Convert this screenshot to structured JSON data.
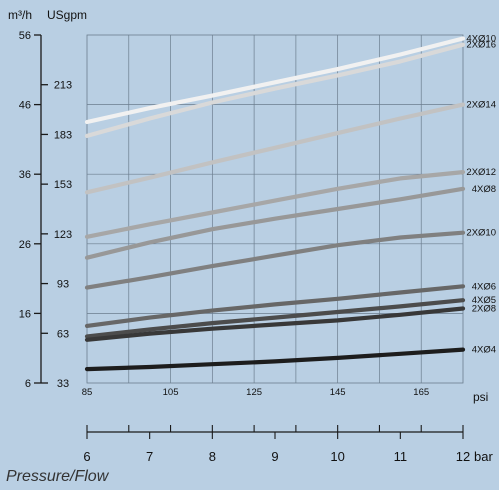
{
  "caption": "Pressure/Flow",
  "chart_data": {
    "type": "line",
    "units": {
      "left": "m³/h",
      "second": "USgpm",
      "top_x": "psi",
      "bottom_x": "bar"
    },
    "axes": {
      "m3h": {
        "range": [
          6,
          56
        ],
        "ticks": [
          6,
          16,
          26,
          36,
          46,
          56
        ]
      },
      "usgpm": {
        "range": [
          33,
          243
        ],
        "ticks": [
          33,
          63,
          93,
          123,
          153,
          183,
          213
        ]
      },
      "psi": {
        "range": [
          85,
          175
        ],
        "ticks": [
          85,
          105,
          125,
          145,
          165
        ],
        "minor_step": 10
      },
      "bar": {
        "range": [
          6,
          12
        ],
        "ticks": [
          6,
          7,
          8,
          9,
          10,
          11,
          12
        ]
      }
    },
    "grid": true,
    "series": [
      {
        "name": "4XØ10",
        "color": "#f1f1f1",
        "x": [
          6,
          7,
          8,
          9,
          10,
          11,
          12
        ],
        "values": [
          43.5,
          45.5,
          47.3,
          49.2,
          51.1,
          53.2,
          55.5
        ]
      },
      {
        "name": "2XØ16",
        "color": "#d9d9d9",
        "x": [
          6,
          7,
          8,
          9,
          10,
          11,
          12
        ],
        "values": [
          41.5,
          44.0,
          46.3,
          48.3,
          50.2,
          52.2,
          54.6
        ]
      },
      {
        "name": "2XØ14",
        "color": "#c2c2c2",
        "x": [
          6,
          7,
          8,
          9,
          10,
          11,
          12
        ],
        "values": [
          33.4,
          35.5,
          37.7,
          39.8,
          41.9,
          44.0,
          46.0
        ]
      },
      {
        "name": "2XØ12",
        "color": "#a7a7a7",
        "x": [
          6,
          7,
          8,
          9,
          10,
          11,
          12
        ],
        "values": [
          27.0,
          28.8,
          30.5,
          32.2,
          33.9,
          35.4,
          36.3
        ]
      },
      {
        "name": "4XØ8",
        "color": "#989898",
        "x": [
          6,
          7,
          8,
          9,
          10,
          11,
          12
        ],
        "values": [
          24.0,
          26.2,
          28.1,
          29.6,
          31.0,
          32.4,
          33.9
        ]
      },
      {
        "name": "2XØ10",
        "color": "#808080",
        "x": [
          6,
          7,
          8,
          9,
          10,
          11,
          12
        ],
        "values": [
          19.7,
          21.2,
          22.8,
          24.3,
          25.8,
          26.9,
          27.6
        ]
      },
      {
        "name": "4XØ6",
        "color": "#676767",
        "x": [
          6,
          7,
          8,
          9,
          10,
          11,
          12
        ],
        "values": [
          14.2,
          15.4,
          16.4,
          17.3,
          18.1,
          19.0,
          19.9
        ]
      },
      {
        "name": "4XØ5",
        "color": "#4c4c4c",
        "x": [
          6,
          7,
          8,
          9,
          10,
          11,
          12
        ],
        "values": [
          12.7,
          13.7,
          14.6,
          15.4,
          16.2,
          17.0,
          17.9
        ]
      },
      {
        "name": "2XØ8",
        "color": "#383838",
        "x": [
          6,
          7,
          8,
          9,
          10,
          11,
          12
        ],
        "values": [
          12.2,
          13.1,
          13.8,
          14.4,
          15.0,
          15.8,
          16.7
        ]
      },
      {
        "name": "4XØ4",
        "color": "#1d1d1d",
        "x": [
          6,
          7,
          8,
          9,
          10,
          11,
          12
        ],
        "values": [
          8.0,
          8.3,
          8.7,
          9.1,
          9.6,
          10.2,
          10.8
        ]
      }
    ]
  }
}
